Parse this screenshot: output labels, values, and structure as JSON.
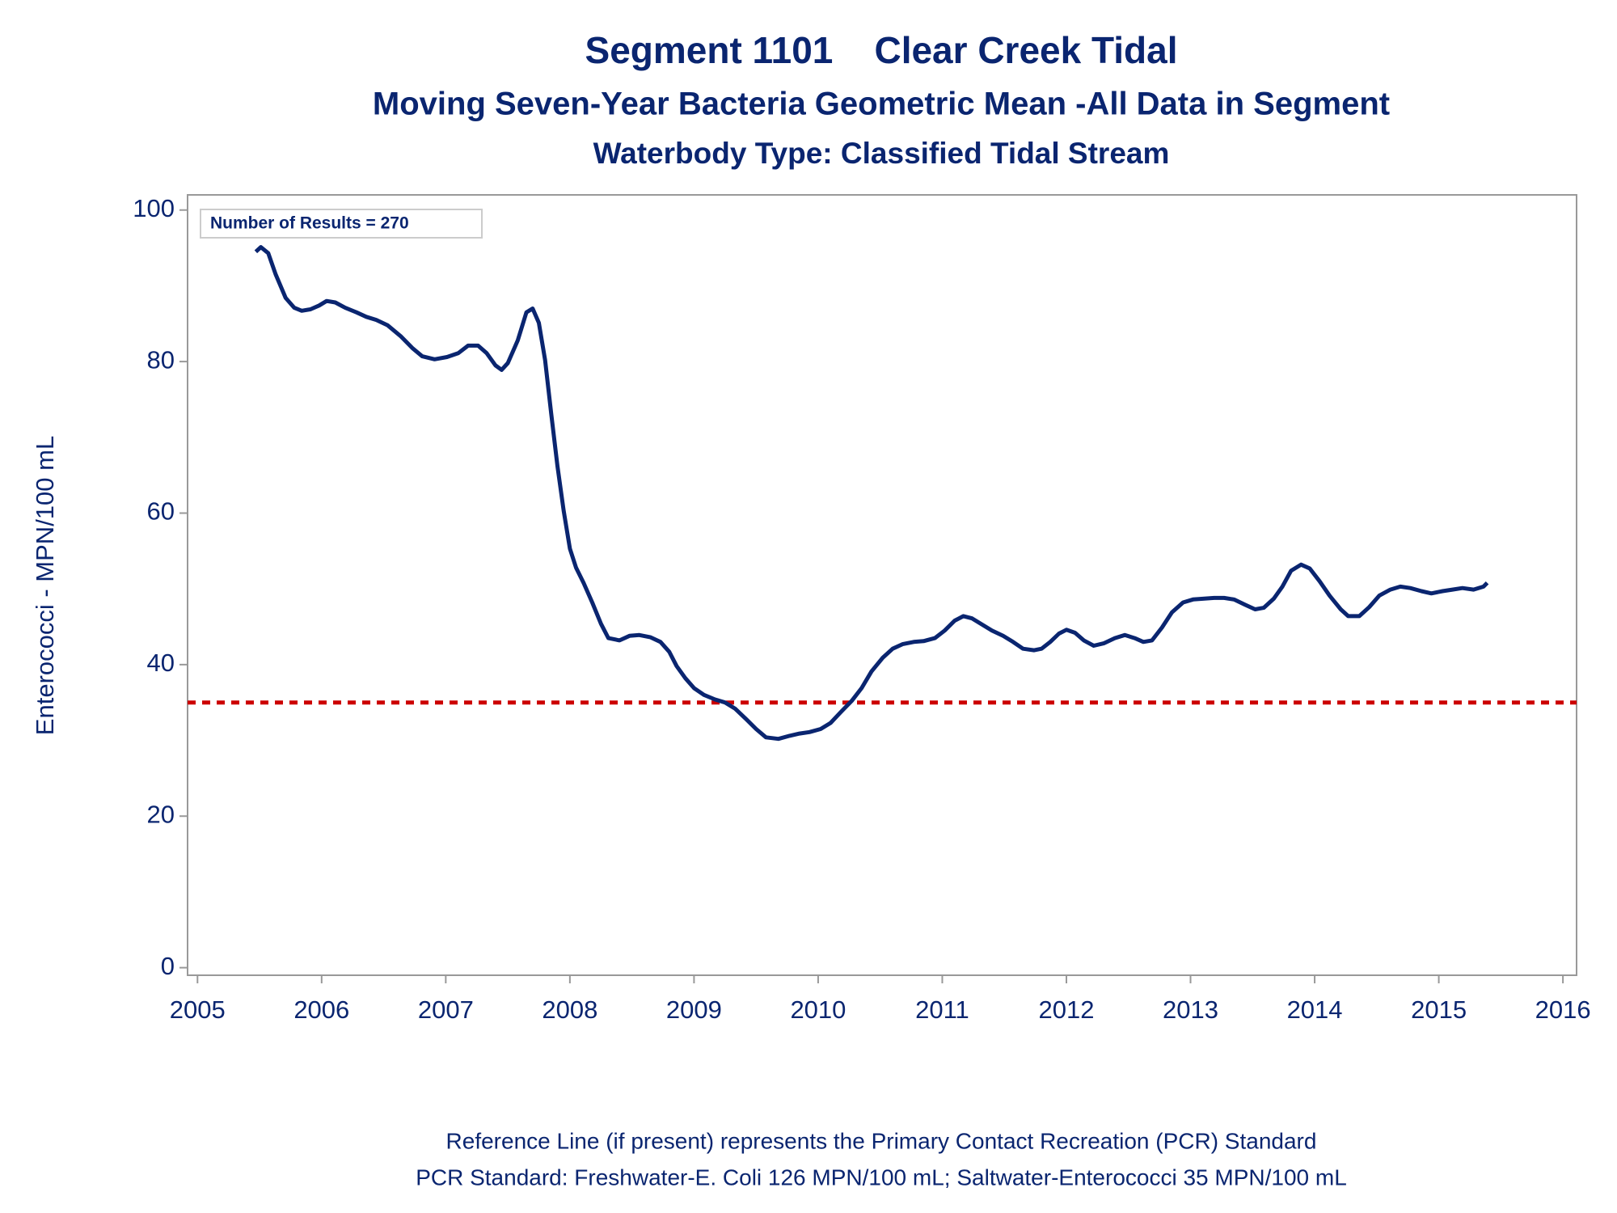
{
  "chart_data": {
    "type": "line",
    "title": "Segment 1101    Clear Creek Tidal",
    "subtitles": [
      "Moving Seven-Year Bacteria Geometric Mean -All Data in Segment",
      "Waterbody Type: Classified Tidal Stream"
    ],
    "ylabel": "Enterococci - MPN/100 mL",
    "annotation": "Number of Results = 270",
    "footnotes": [
      "Reference Line (if present) represents the Primary Contact Recreation (PCR) Standard",
      "PCR Standard: Freshwater-E. Coli 126 MPN/100 mL; Saltwater-Enterococci 35 MPN/100 mL"
    ],
    "xlim": [
      2004.92,
      2016.11
    ],
    "xticks": [
      2005,
      2006,
      2007,
      2008,
      2009,
      2010,
      2011,
      2012,
      2013,
      2014,
      2015,
      2016
    ],
    "ylim": [
      -1,
      102
    ],
    "yticks": [
      0,
      20,
      40,
      60,
      80,
      100
    ],
    "grid": false,
    "reference_line": {
      "value": 35,
      "color": "#cc0000"
    },
    "x": [
      2005.47,
      2005.51,
      2005.57,
      2005.63,
      2005.71,
      2005.78,
      2005.84,
      2005.91,
      2005.98,
      2006.04,
      2006.11,
      2006.19,
      2006.28,
      2006.36,
      2006.44,
      2006.53,
      2006.64,
      2006.73,
      2006.81,
      2006.91,
      2007.01,
      2007.1,
      2007.18,
      2007.26,
      2007.33,
      2007.4,
      2007.45,
      2007.5,
      2007.58,
      2007.65,
      2007.7,
      2007.75,
      2007.8,
      2007.85,
      2007.9,
      2007.95,
      2008.0,
      2008.05,
      2008.11,
      2008.18,
      2008.25,
      2008.31,
      2008.4,
      2008.48,
      2008.56,
      2008.65,
      2008.73,
      2008.8,
      2008.86,
      2008.93,
      2009.0,
      2009.08,
      2009.17,
      2009.25,
      2009.33,
      2009.42,
      2009.5,
      2009.58,
      2009.68,
      2009.77,
      2009.85,
      2009.93,
      2010.02,
      2010.1,
      2010.18,
      2010.27,
      2010.35,
      2010.43,
      2010.52,
      2010.6,
      2010.68,
      2010.77,
      2010.85,
      2010.94,
      2011.02,
      2011.1,
      2011.17,
      2011.24,
      2011.32,
      2011.4,
      2011.49,
      2011.57,
      2011.65,
      2011.74,
      2011.8,
      2011.87,
      2011.94,
      2012.0,
      2012.07,
      2012.14,
      2012.22,
      2012.3,
      2012.39,
      2012.47,
      2012.55,
      2012.62,
      2012.69,
      2012.77,
      2012.85,
      2012.94,
      2013.02,
      2013.1,
      2013.19,
      2013.27,
      2013.35,
      2013.44,
      2013.52,
      2013.59,
      2013.67,
      2013.74,
      2013.81,
      2013.89,
      2013.96,
      2014.04,
      2014.12,
      2014.21,
      2014.27,
      2014.36,
      2014.44,
      2014.52,
      2014.61,
      2014.69,
      2014.77,
      2014.86,
      2014.94,
      2015.03,
      2015.11,
      2015.19,
      2015.28,
      2015.36,
      2015.39
    ],
    "series": [
      {
        "name": "Geometric Mean",
        "color": "#0a2570",
        "values": [
          94.5,
          95.1,
          94.3,
          91.5,
          88.4,
          87.1,
          86.7,
          86.9,
          87.4,
          88.0,
          87.8,
          87.1,
          86.5,
          85.9,
          85.5,
          84.8,
          83.3,
          81.8,
          80.7,
          80.3,
          80.6,
          81.1,
          82.1,
          82.1,
          81.1,
          79.5,
          78.9,
          79.8,
          82.8,
          86.5,
          87.0,
          85.1,
          80.2,
          73.1,
          66.2,
          60.3,
          55.3,
          52.8,
          50.8,
          48.2,
          45.4,
          43.5,
          43.2,
          43.8,
          43.9,
          43.6,
          43.0,
          41.7,
          39.8,
          38.2,
          36.9,
          36.0,
          35.4,
          35.0,
          34.2,
          32.8,
          31.5,
          30.4,
          30.2,
          30.6,
          30.9,
          31.1,
          31.5,
          32.3,
          33.7,
          35.2,
          36.9,
          39.1,
          40.9,
          42.1,
          42.7,
          43.0,
          43.1,
          43.5,
          44.5,
          45.8,
          46.4,
          46.1,
          45.3,
          44.5,
          43.8,
          43.0,
          42.1,
          41.9,
          42.1,
          43.0,
          44.1,
          44.6,
          44.2,
          43.2,
          42.5,
          42.8,
          43.5,
          43.9,
          43.5,
          43.0,
          43.2,
          44.9,
          46.9,
          48.2,
          48.6,
          48.7,
          48.8,
          48.8,
          48.6,
          47.9,
          47.3,
          47.5,
          48.7,
          50.3,
          52.4,
          53.2,
          52.7,
          51.0,
          49.1,
          47.3,
          46.4,
          46.4,
          47.6,
          49.1,
          49.9,
          50.3,
          50.1,
          49.7,
          49.4,
          49.7,
          49.9,
          50.1,
          49.9,
          50.3,
          50.8
        ]
      }
    ]
  }
}
